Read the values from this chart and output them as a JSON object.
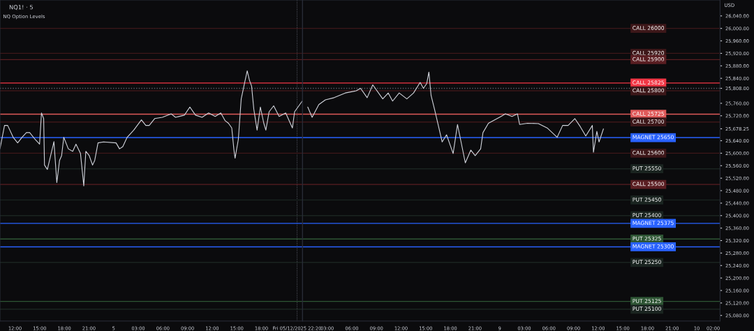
{
  "chart_data": [
    {
      "type": "line",
      "title": "NQ1! · 5",
      "subtitle": "NQ Option Levels",
      "tick_labels": "x",
      "x": [
        "2025-12-04T10:10",
        "2025-12-04T10:43",
        "2025-12-04T11:06",
        "2025-12-04T11:46",
        "2025-12-04T12:19",
        "2025-12-04T12:51",
        "2025-12-04T13:23",
        "2025-12-04T13:47",
        "2025-12-04T14:27",
        "2025-12-04T14:59",
        "2025-12-04T15:13",
        "2025-12-04T15:29",
        "2025-12-04T15:35",
        "2025-12-04T15:56",
        "2025-12-04T16:20",
        "2025-12-04T16:44",
        "2025-12-04T17:05",
        "2025-12-04T17:25",
        "2025-12-04T17:40",
        "2025-12-04T17:56",
        "2025-12-04T18:29",
        "2025-12-04T19:01",
        "2025-12-04T19:25",
        "2025-12-04T19:58",
        "2025-12-04T20:22",
        "2025-12-04T20:37",
        "2025-12-04T21:02",
        "2025-12-04T21:26",
        "2025-12-04T21:42",
        "2025-12-04T22:06",
        "2025-12-04T22:46",
        "2025-12-05T00:18",
        "2025-12-05T00:43",
        "2025-12-05T01:07",
        "2025-12-05T01:39",
        "2025-12-05T02:27",
        "2025-12-05T03:23",
        "2025-12-05T03:55",
        "2025-12-05T04:20",
        "2025-12-05T05:00",
        "2025-12-05T05:56",
        "2025-12-05T07:01",
        "2025-12-05T07:32",
        "2025-12-05T08:37",
        "2025-12-05T09:17",
        "2025-12-05T09:58",
        "2025-12-05T10:46",
        "2025-12-05T11:34",
        "2025-12-05T12:22",
        "2025-12-05T13:03",
        "2025-12-05T13:35",
        "2025-12-05T13:59",
        "2025-12-05T14:23",
        "2025-12-05T14:39",
        "2025-12-05T14:47",
        "2025-12-05T15:11",
        "2025-12-05T15:32",
        "2025-12-05T15:59",
        "2025-12-05T16:16",
        "2025-12-05T16:32",
        "2025-12-05T16:48",
        "2025-12-05T17:04",
        "2025-12-05T17:28",
        "2025-12-05T17:52",
        "2025-12-05T18:17",
        "2025-12-05T18:32",
        "2025-12-05T18:56",
        "2025-12-05T19:29",
        "2025-12-05T20:09",
        "2025-12-05T20:57",
        "2025-12-05T21:46",
        "2025-12-05T22:02",
        "2025-12-05T22:58"
      ],
      "series": [
        {
          "color": "#d1d4dc",
          "values": [
            25614,
            25689,
            25689,
            25651,
            25633,
            25651,
            25666,
            25666,
            25644,
            25629,
            25729,
            25711,
            25562,
            25548,
            25592,
            25637,
            25506,
            25577,
            25592,
            25651,
            25614,
            25606,
            25629,
            25599,
            25495,
            25606,
            25592,
            25562,
            25577,
            25633,
            25636,
            25633,
            25614,
            25621,
            25651,
            25674,
            25707,
            25689,
            25689,
            25711,
            25715,
            25726,
            25715,
            25722,
            25748,
            25722,
            25715,
            25729,
            25718,
            25729,
            25704,
            25696,
            25681,
            25610,
            25584,
            25644,
            25774,
            25830,
            25864,
            25834,
            25815,
            25741,
            25674,
            25748,
            25696,
            25674,
            25733,
            25752,
            25718,
            25729,
            25681,
            25733,
            25767
          ]
        }
      ],
      "xlim": [
        "2025-12-04T10:10",
        "2025-12-05T23:00"
      ],
      "xticks": [
        {
          "value": "2025-12-04T12:00",
          "label": "12:00"
        },
        {
          "value": "2025-12-04T15:00",
          "label": "15:00"
        },
        {
          "value": "2025-12-04T18:00",
          "label": "18:00"
        },
        {
          "value": "2025-12-04T21:00",
          "label": "21:00"
        },
        {
          "value": "2025-12-05T00:00",
          "label": "5"
        },
        {
          "value": "2025-12-05T03:00",
          "label": "03:00"
        },
        {
          "value": "2025-12-05T06:00",
          "label": "06:00"
        },
        {
          "value": "2025-12-05T09:00",
          "label": "09:00"
        },
        {
          "value": "2025-12-05T12:00",
          "label": "12:00"
        },
        {
          "value": "2025-12-05T15:00",
          "label": "15:00"
        },
        {
          "value": "2025-12-05T18:00",
          "label": "18:00"
        },
        {
          "value": "2025-12-05T22:20",
          "label": "Fri 05/12/2025 22:20"
        }
      ],
      "ylim": [
        25062,
        26091
      ],
      "ref_lines": [
        {
          "axis": "x",
          "value": "2025-12-05T22:20",
          "color": "#5d606b",
          "line_style": "dotted"
        },
        {
          "axis": "y",
          "value": 25808,
          "color": "#5d606b",
          "line_style": "dotted"
        },
        {
          "axis": "y",
          "value": 26000,
          "color": "#3d1719"
        },
        {
          "axis": "y",
          "value": 25920,
          "color": "#3d1719"
        },
        {
          "axis": "y",
          "value": 25900,
          "color": "#5a1e22"
        },
        {
          "axis": "y",
          "value": 25825,
          "color": "#f23645"
        },
        {
          "axis": "y",
          "value": 25800,
          "color": "#3d1719"
        },
        {
          "axis": "y",
          "value": 25725,
          "color": "#e05a5a"
        },
        {
          "axis": "y",
          "value": 25700,
          "color": "#3d1719"
        },
        {
          "axis": "y",
          "value": 25650,
          "color": "#2962ff"
        },
        {
          "axis": "y",
          "value": 25600,
          "color": "#3d1719"
        },
        {
          "axis": "y",
          "value": 25550,
          "color": "#1a2420"
        },
        {
          "axis": "y",
          "value": 25500,
          "color": "#5a1e22"
        },
        {
          "axis": "y",
          "value": 25450,
          "color": "#1a2420"
        },
        {
          "axis": "y",
          "value": 25400,
          "color": "#1a2420"
        },
        {
          "axis": "y",
          "value": 25375,
          "color": "#2962ff"
        },
        {
          "axis": "y",
          "value": 25325,
          "color": "#2e5534"
        },
        {
          "axis": "y",
          "value": 25300,
          "color": "#2962ff"
        },
        {
          "axis": "y",
          "value": 25250,
          "color": "#1a2420"
        },
        {
          "axis": "y",
          "value": 25125,
          "color": "#2e5534"
        },
        {
          "axis": "y",
          "value": 25100,
          "color": "#1a2420"
        }
      ]
    },
    {
      "type": "line",
      "annotations": [
        "USD"
      ],
      "x": [
        "2025-12-08T00:38",
        "2025-12-08T01:10",
        "2025-12-08T01:59",
        "2025-12-08T02:47",
        "2025-12-08T03:51",
        "2025-12-08T05:12",
        "2025-12-08T06:32",
        "2025-12-08T07:04",
        "2025-12-08T07:52",
        "2025-12-08T08:33",
        "2025-12-08T09:46",
        "2025-12-08T10:26",
        "2025-12-08T10:58",
        "2025-12-08T11:46",
        "2025-12-08T12:42",
        "2025-12-08T13:31",
        "2025-12-08T14:19",
        "2025-12-08T14:43",
        "2025-12-08T15:07",
        "2025-12-08T15:23",
        "2025-12-08T15:39",
        "2025-12-08T16:04",
        "2025-12-08T16:28",
        "2025-12-08T17:00",
        "2025-12-08T17:32",
        "2025-12-08T17:56",
        "2025-12-08T18:20",
        "2025-12-08T18:52",
        "2025-12-08T19:25",
        "2025-12-08T19:49",
        "2025-12-08T20:29",
        "2025-12-08T21:01",
        "2025-12-08T21:41",
        "2025-12-08T21:58",
        "2025-12-08T22:38",
        "2025-12-09T00:10",
        "2025-12-09T00:42",
        "2025-12-09T01:30",
        "2025-12-09T02:10",
        "2025-12-09T02:26",
        "2025-12-09T03:23",
        "2025-12-09T04:43",
        "2025-12-09T05:47",
        "2025-12-09T07:00",
        "2025-12-09T07:40",
        "2025-12-09T08:20",
        "2025-12-09T09:09",
        "2025-12-09T09:49",
        "2025-12-09T10:29",
        "2025-12-09T11:17",
        "2025-12-09T11:25",
        "2025-12-09T11:50",
        "2025-12-09T12:06",
        "2025-12-09T12:38"
      ],
      "series": [
        {
          "color": "#d1d4dc",
          "values": [
            25748,
            25715,
            25756,
            25771,
            25778,
            25793,
            25800,
            25808,
            25778,
            25819,
            25774,
            25793,
            25767,
            25793,
            25774,
            25793,
            25827,
            25808,
            25823,
            25860,
            25785,
            25741,
            25696,
            25636,
            25659,
            25629,
            25599,
            25692,
            25621,
            25569,
            25610,
            25592,
            25614,
            25666,
            25696,
            25718,
            25726,
            25718,
            25726,
            25692,
            25696,
            25695,
            25681,
            25651,
            25689,
            25689,
            25711,
            25685,
            25655,
            25689,
            25603,
            25670,
            25636,
            25678
          ]
        }
      ],
      "xlim": [
        "2025-12-08T00:00",
        "2025-12-10T02:50"
      ],
      "xticks": [
        {
          "value": "2025-12-08T03:00",
          "label": "03:00"
        },
        {
          "value": "2025-12-08T06:00",
          "label": "06:00"
        },
        {
          "value": "2025-12-08T09:00",
          "label": "09:00"
        },
        {
          "value": "2025-12-08T12:00",
          "label": "12:00"
        },
        {
          "value": "2025-12-08T15:00",
          "label": "15:00"
        },
        {
          "value": "2025-12-08T18:00",
          "label": "18:00"
        },
        {
          "value": "2025-12-08T21:00",
          "label": "21:00"
        },
        {
          "value": "2025-12-09T00:00",
          "label": "9"
        },
        {
          "value": "2025-12-09T03:00",
          "label": "03:00"
        },
        {
          "value": "2025-12-09T06:00",
          "label": "06:00"
        },
        {
          "value": "2025-12-09T09:00",
          "label": "09:00"
        },
        {
          "value": "2025-12-09T12:00",
          "label": "12:00"
        },
        {
          "value": "2025-12-09T15:00",
          "label": "15:00"
        },
        {
          "value": "2025-12-09T18:00",
          "label": "18:00"
        },
        {
          "value": "2025-12-09T21:00",
          "label": "21:00"
        },
        {
          "value": "2025-12-10T00:00",
          "label": "10"
        },
        {
          "value": "2025-12-10T02:00",
          "label": "02:00"
        }
      ],
      "ylim": [
        25062,
        26091
      ],
      "yticks": [
        {
          "value": 25080,
          "label": "25,080.00"
        },
        {
          "value": 25120,
          "label": "25,120.00"
        },
        {
          "value": 25160,
          "label": "25,160.00"
        },
        {
          "value": 25200,
          "label": "25,200.00"
        },
        {
          "value": 25240,
          "label": "25,240.00"
        },
        {
          "value": 25280,
          "label": "25,280.00"
        },
        {
          "value": 25320,
          "label": "25,320.00"
        },
        {
          "value": 25360,
          "label": "25,360.00"
        },
        {
          "value": 25400,
          "label": "25,400.00"
        },
        {
          "value": 25440,
          "label": "25,440.00"
        },
        {
          "value": 25480,
          "label": "25,480.00"
        },
        {
          "value": 25520,
          "label": "25,520.00"
        },
        {
          "value": 25560,
          "label": "25,560.00"
        },
        {
          "value": 25600,
          "label": "25,600.00"
        },
        {
          "value": 25640,
          "label": "25,640.00"
        },
        {
          "value": 25678.25,
          "label": "25,678.25"
        },
        {
          "value": 25720,
          "label": "25,720.00"
        },
        {
          "value": 25760,
          "label": "25,760.00"
        },
        {
          "value": 25808,
          "label": "25,808.00"
        },
        {
          "value": 25840,
          "label": "25,840.00"
        },
        {
          "value": 25880,
          "label": "25,880.00"
        },
        {
          "value": 25920,
          "label": "25,920.00"
        },
        {
          "value": 25960,
          "label": "25,960.00"
        },
        {
          "value": 26000,
          "label": "26,000.00"
        },
        {
          "value": 26040,
          "label": "26,040.00"
        }
      ],
      "ref_lines": [
        {
          "axis": "y",
          "value": 25808,
          "color": "#5d606b",
          "line_style": "dotted"
        },
        {
          "axis": "y",
          "value": 26000,
          "label": "CALL 26000",
          "color": "#3d1719"
        },
        {
          "axis": "y",
          "value": 25920,
          "label": "CALL 25920",
          "color": "#3d1719"
        },
        {
          "axis": "y",
          "value": 25900,
          "label": "CALL 25900",
          "color": "#5a1e22"
        },
        {
          "axis": "y",
          "value": 25825,
          "label": "CALL 25825",
          "color": "#f23645"
        },
        {
          "axis": "y",
          "value": 25800,
          "label": "CALL 25800",
          "color": "#3d1719"
        },
        {
          "axis": "y",
          "value": 25725,
          "label": "CALL 25725",
          "color": "#e05a5a"
        },
        {
          "axis": "y",
          "value": 25700,
          "label": "CALL 25700",
          "color": "#3d1719"
        },
        {
          "axis": "y",
          "value": 25650,
          "label": "MAGNET 25650",
          "color": "#2962ff"
        },
        {
          "axis": "y",
          "value": 25600,
          "label": "CALL 25600",
          "color": "#3d1719"
        },
        {
          "axis": "y",
          "value": 25550,
          "label": "PUT 25550",
          "color": "#1a2420"
        },
        {
          "axis": "y",
          "value": 25500,
          "label": "CALL 25500",
          "color": "#5a1e22"
        },
        {
          "axis": "y",
          "value": 25450,
          "label": "PUT 25450",
          "color": "#1a2420"
        },
        {
          "axis": "y",
          "value": 25400,
          "label": "PUT 25400",
          "color": "#1a2420"
        },
        {
          "axis": "y",
          "value": 25375,
          "label": "MAGNET 25375",
          "color": "#2962ff"
        },
        {
          "axis": "y",
          "value": 25325,
          "label": "PUT 25325",
          "color": "#2e5534"
        },
        {
          "axis": "y",
          "value": 25300,
          "label": "MAGNET 25300",
          "color": "#2962ff"
        },
        {
          "axis": "y",
          "value": 25250,
          "label": "PUT 25250",
          "color": "#1a2420"
        },
        {
          "axis": "y",
          "value": 25125,
          "label": "PUT 25125",
          "color": "#2e5534"
        },
        {
          "axis": "y",
          "value": 25100,
          "label": "PUT 25100",
          "color": "#1a2420"
        }
      ]
    }
  ]
}
